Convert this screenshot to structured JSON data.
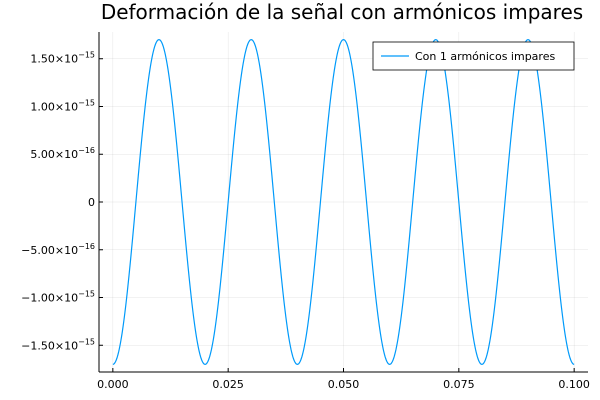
{
  "chart_data": {
    "type": "line",
    "title": "Deformación de la señal con armónicos impares",
    "xlabel": "",
    "ylabel": "",
    "xlim": [
      -0.003,
      0.103
    ],
    "ylim": [
      -1.78e-15,
      1.78e-15
    ],
    "grid": true,
    "legend_position": "top-right",
    "x_ticks": [
      {
        "value": 0.0,
        "label": "0.000"
      },
      {
        "value": 0.025,
        "label": "0.025"
      },
      {
        "value": 0.05,
        "label": "0.050"
      },
      {
        "value": 0.075,
        "label": "0.075"
      },
      {
        "value": 0.1,
        "label": "0.100"
      }
    ],
    "y_ticks": [
      {
        "value": 1.5e-15,
        "mantissa": "1.50×10",
        "exponent": "−15"
      },
      {
        "value": 1e-15,
        "mantissa": "1.00×10",
        "exponent": "−15"
      },
      {
        "value": 5e-16,
        "mantissa": "5.00×10",
        "exponent": "−16"
      },
      {
        "value": 0,
        "mantissa": "0",
        "exponent": ""
      },
      {
        "value": -5e-16,
        "mantissa": "−5.00×10",
        "exponent": "−16"
      },
      {
        "value": -1e-15,
        "mantissa": "−1.00×10",
        "exponent": "−15"
      },
      {
        "value": -1.5e-15,
        "mantissa": "−1.50×10",
        "exponent": "−15"
      }
    ],
    "series": [
      {
        "name": "Con 1 armónicos impares",
        "color": "#009AFA",
        "function": "-A*cos(2*pi*f*x)",
        "amplitude": 1.7e-15,
        "frequency_hz": 50,
        "x_range": [
          0,
          0.1
        ],
        "samples": 801
      }
    ]
  }
}
